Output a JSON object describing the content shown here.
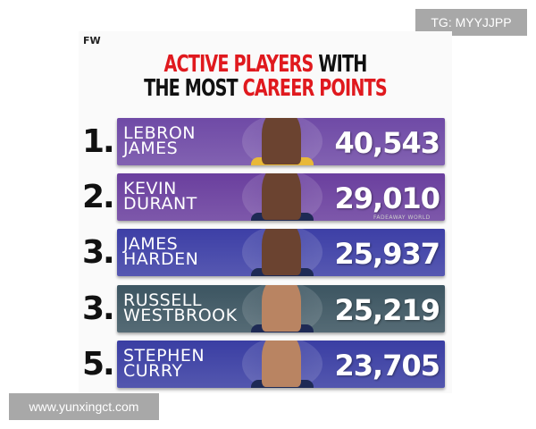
{
  "watermarks": {
    "top": "TG: MYYJJPP",
    "bottom": "www.yunxingct.com"
  },
  "brand": "FW",
  "title": {
    "line1_red": "ACTIVE PLAYERS",
    "line1_black": "WITH",
    "line2_black": "THE MOST",
    "line2_red": "CAREER POINTS"
  },
  "players": [
    {
      "rank": "1.",
      "first": "LEBRON",
      "last": "JAMES",
      "points": "40,543",
      "team_logo": "lakers-logo",
      "bar_color": "#6f4aa6"
    },
    {
      "rank": "2.",
      "first": "KEVIN",
      "last": "DURANT",
      "points": "29,010",
      "team_logo": "suns-logo",
      "bar_color": "#6a3f9e"
    },
    {
      "rank": "3.",
      "first": "JAMES",
      "last": "HARDEN",
      "points": "25,937",
      "team_logo": "nets-logo",
      "bar_color": "#3d3fa6"
    },
    {
      "rank": "3.",
      "first": "RUSSELL",
      "last": "WESTBROOK",
      "points": "25,219",
      "team_logo": "nuggets-logo",
      "bar_color": "#3c5561"
    },
    {
      "rank": "5.",
      "first": "STEPHEN",
      "last": "CURRY",
      "points": "23,705",
      "team_logo": "warriors-logo",
      "bar_color": "#3a3ea3"
    }
  ],
  "credit": "FADEAWAY WORLD"
}
